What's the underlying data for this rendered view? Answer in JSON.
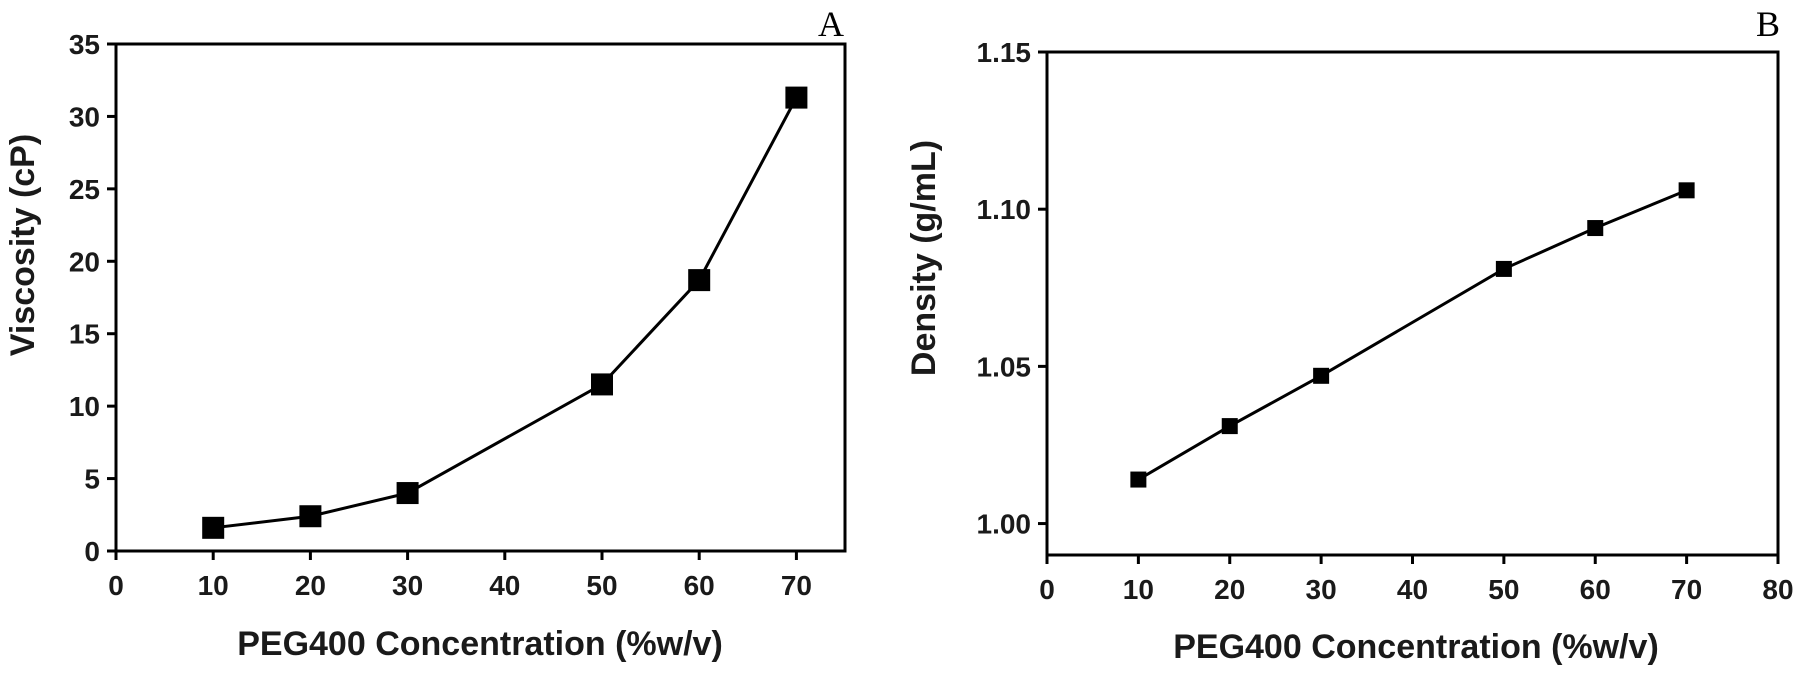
{
  "chart_data": [
    {
      "type": "line",
      "panel_label": "A",
      "xlabel": "PEG400 Concentration (%w/v)",
      "ylabel": "Viscosity (cP)",
      "xlim": [
        0,
        75
      ],
      "ylim": [
        0,
        35
      ],
      "xticks": [
        0,
        10,
        20,
        30,
        40,
        50,
        60,
        70
      ],
      "yticks": [
        0,
        5,
        10,
        15,
        20,
        25,
        30,
        35
      ],
      "xtick_labels": [
        "0",
        "10",
        "20",
        "30",
        "40",
        "50",
        "60",
        "70"
      ],
      "ytick_labels": [
        "0",
        "5",
        "10",
        "15",
        "20",
        "25",
        "30",
        "35"
      ],
      "grid": false,
      "x": [
        10,
        20,
        30,
        50,
        60,
        70
      ],
      "y": [
        1.6,
        2.4,
        4.0,
        11.5,
        18.7,
        31.3
      ]
    },
    {
      "type": "line",
      "panel_label": "B",
      "xlabel": "PEG400 Concentration (%w/v)",
      "ylabel": "Density (g/mL)",
      "xlim": [
        0,
        80
      ],
      "ylim": [
        0.99,
        1.15
      ],
      "xticks": [
        0,
        10,
        20,
        30,
        40,
        50,
        60,
        70,
        80
      ],
      "yticks": [
        1.0,
        1.05,
        1.1,
        1.15
      ],
      "xtick_labels": [
        "0",
        "10",
        "20",
        "30",
        "40",
        "50",
        "60",
        "70",
        "80"
      ],
      "ytick_labels": [
        "1.00",
        "1.05",
        "1.10",
        "1.15"
      ],
      "grid": false,
      "x": [
        10,
        20,
        30,
        50,
        60,
        70
      ],
      "y": [
        1.014,
        1.031,
        1.047,
        1.081,
        1.094,
        1.106
      ]
    }
  ]
}
